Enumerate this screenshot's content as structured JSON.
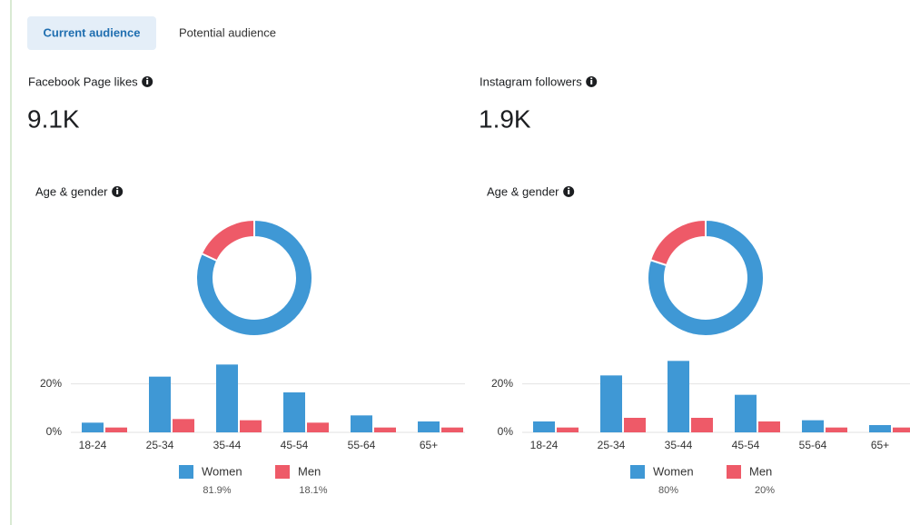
{
  "tabs": [
    "Current audience",
    "Potential audience"
  ],
  "metrics": [
    {
      "label": "Facebook Page likes",
      "value": "9.1K"
    },
    {
      "label": "Instagram followers",
      "value": "1.9K"
    }
  ],
  "chart_data": [
    {
      "type": "pie",
      "title": "Age & gender",
      "categories": [
        "Women",
        "Men"
      ],
      "values": [
        81.9,
        18.1
      ],
      "value_labels": [
        "81.9%",
        "18.1%"
      ],
      "colors": [
        "#3f98d5",
        "#ee5a68"
      ]
    },
    {
      "type": "bar",
      "categories": [
        "18-24",
        "25-34",
        "35-44",
        "45-54",
        "55-64",
        "65+"
      ],
      "series": [
        {
          "name": "Women",
          "color": "#3f98d5",
          "values": [
            4,
            23,
            28,
            16.5,
            7,
            4.5
          ]
        },
        {
          "name": "Men",
          "color": "#ee5a68",
          "values": [
            2,
            5.5,
            5,
            4,
            2,
            2
          ]
        }
      ],
      "ylim": [
        0,
        30
      ],
      "yticks": [
        {
          "value": 0,
          "label": "0%"
        },
        {
          "value": 20,
          "label": "20%"
        }
      ],
      "grid": true
    },
    {
      "type": "pie",
      "title": "Age & gender",
      "categories": [
        "Women",
        "Men"
      ],
      "values": [
        80,
        20
      ],
      "value_labels": [
        "80%",
        "20%"
      ],
      "colors": [
        "#3f98d5",
        "#ee5a68"
      ]
    },
    {
      "type": "bar",
      "categories": [
        "18-24",
        "25-34",
        "35-44",
        "45-54",
        "55-64",
        "65+"
      ],
      "series": [
        {
          "name": "Women",
          "color": "#3f98d5",
          "values": [
            4.5,
            23.5,
            29.5,
            15.5,
            5,
            3
          ]
        },
        {
          "name": "Men",
          "color": "#ee5a68",
          "values": [
            2,
            6,
            6,
            4.5,
            2,
            2
          ]
        }
      ],
      "ylim": [
        0,
        30
      ],
      "yticks": [
        {
          "value": 0,
          "label": "0%"
        },
        {
          "value": 20,
          "label": "20%"
        }
      ],
      "grid": true
    }
  ]
}
